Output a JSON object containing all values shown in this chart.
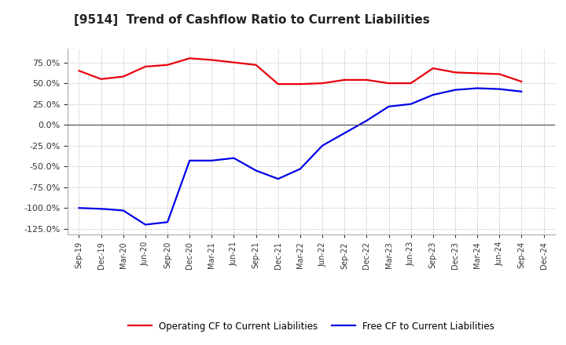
{
  "title": "[9514]  Trend of Cashflow Ratio to Current Liabilities",
  "x_labels": [
    "Sep-19",
    "Dec-19",
    "Mar-20",
    "Jun-20",
    "Sep-20",
    "Dec-20",
    "Mar-21",
    "Jun-21",
    "Sep-21",
    "Dec-21",
    "Mar-22",
    "Jun-22",
    "Sep-22",
    "Dec-22",
    "Mar-23",
    "Jun-23",
    "Sep-23",
    "Dec-23",
    "Mar-24",
    "Jun-24",
    "Sep-24",
    "Dec-24"
  ],
  "operating_cf": [
    65.0,
    55.0,
    58.0,
    70.0,
    72.0,
    80.0,
    78.0,
    75.0,
    72.0,
    49.0,
    49.0,
    50.0,
    54.0,
    54.0,
    50.0,
    50.0,
    68.0,
    63.0,
    62.0,
    61.0,
    52.0,
    null
  ],
  "free_cf": [
    -100.0,
    -101.0,
    -103.0,
    -120.0,
    -117.0,
    -43.0,
    -43.0,
    -40.0,
    -55.0,
    -65.0,
    -53.0,
    -25.0,
    -10.0,
    5.0,
    22.0,
    25.0,
    36.0,
    42.0,
    44.0,
    43.0,
    40.0,
    null
  ],
  "operating_color": "#e8000a",
  "free_color": "#0000e8",
  "ylim": [
    -132,
    92
  ],
  "yticks": [
    -125.0,
    -100.0,
    -75.0,
    -50.0,
    -25.0,
    0.0,
    25.0,
    50.0,
    75.0
  ],
  "background_color": "#ffffff",
  "plot_bg_color": "#ffffff",
  "grid_color": "#b0b0b0",
  "legend_labels": [
    "Operating CF to Current Liabilities",
    "Free CF to Current Liabilities"
  ]
}
